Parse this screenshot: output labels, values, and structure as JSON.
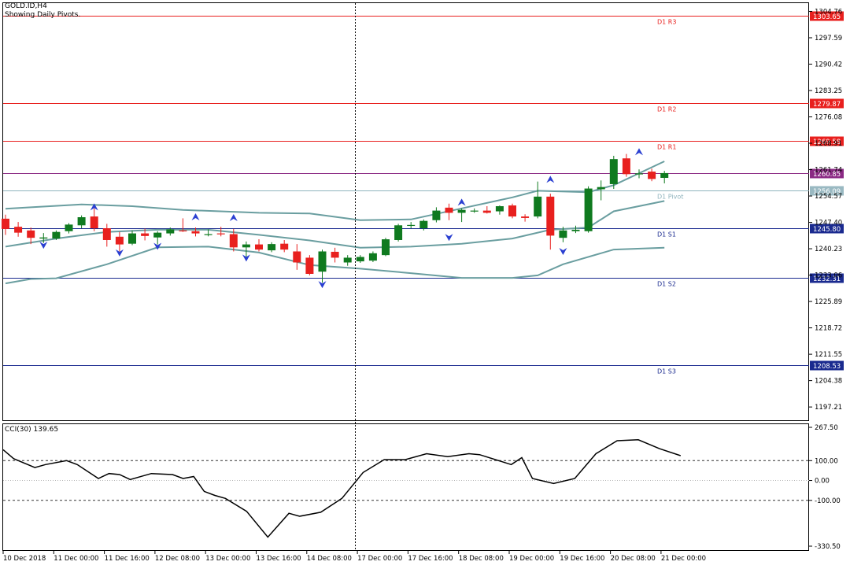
{
  "header": {
    "symbol_timeframe": "GOLD.ID,H4",
    "indicator_caption": "Showing Daily Pivots."
  },
  "price_axis": {
    "ticks": [
      "1304.76",
      "1297.59",
      "1290.42",
      "1283.25",
      "1276.08",
      "1268.91",
      "1261.74",
      "1254.57",
      "1247.40",
      "1240.23",
      "1233.06",
      "1225.89",
      "1218.72",
      "1211.55",
      "1204.38",
      "1197.21"
    ]
  },
  "pivots": [
    {
      "name": "D1 R3",
      "price_label": "1303.65",
      "price": 1303.65,
      "color": "#e8201e",
      "badge": "#e8201e"
    },
    {
      "name": "D1 R2",
      "price_label": "1279.87",
      "price": 1279.87,
      "color": "#e8201e",
      "badge": "#e8201e"
    },
    {
      "name": "D1 R1",
      "price_label": "1269.58",
      "price": 1269.58,
      "color": "#e8201e",
      "badge": "#e8201e"
    },
    {
      "name": "",
      "price_label": "1260.85",
      "price": 1260.85,
      "color": "#8b2a84",
      "badge": "#8b2a84"
    },
    {
      "name": "D1 Pivot",
      "price_label": "1256.09",
      "price": 1256.09,
      "color": "#8fb3bd",
      "badge": "#9ab9c2"
    },
    {
      "name": "D1 S1",
      "price_label": "1245.80",
      "price": 1245.8,
      "color": "#1a2a8f",
      "badge": "#1a2a8f"
    },
    {
      "name": "D1 S2",
      "price_label": "1232.31",
      "price": 1232.31,
      "color": "#1a2a8f",
      "badge": "#1a2a8f"
    },
    {
      "name": "D1 S3",
      "price_label": "1208.53",
      "price": 1208.53,
      "color": "#1a2a8f",
      "badge": "#1a2a8f"
    }
  ],
  "colors": {
    "bull": "#0f7a1f",
    "bear": "#e8201e",
    "band": "#6a9ea0",
    "fractal": "#2a3fd1",
    "cci": "#000000",
    "crosshair": "#000000"
  },
  "chart_data": {
    "type": "candlestick",
    "title": "GOLD.ID,H4",
    "x_labels": [
      "10 Dec 2018",
      "11 Dec 00:00",
      "11 Dec 16:00",
      "12 Dec 08:00",
      "13 Dec 00:00",
      "13 Dec 16:00",
      "14 Dec 08:00",
      "17 Dec 00:00",
      "17 Dec 16:00",
      "18 Dec 08:00",
      "19 Dec 00:00",
      "19 Dec 16:00",
      "20 Dec 08:00",
      "21 Dec 00:00"
    ],
    "ylim": [
      1193.6,
      1307.0
    ],
    "candles": [
      {
        "o": 1248.4,
        "h": 1249.5,
        "l": 1244.0,
        "c": 1245.6
      },
      {
        "o": 1246.2,
        "h": 1247.5,
        "l": 1243.5,
        "c": 1244.6
      },
      {
        "o": 1245.2,
        "h": 1246.0,
        "l": 1241.5,
        "c": 1243.2
      },
      {
        "o": 1243.0,
        "h": 1244.5,
        "l": 1241.8,
        "c": 1243.3
      },
      {
        "o": 1243.0,
        "h": 1245.2,
        "l": 1242.6,
        "c": 1244.8
      },
      {
        "o": 1245.0,
        "h": 1247.2,
        "l": 1244.4,
        "c": 1246.8
      },
      {
        "o": 1246.6,
        "h": 1249.3,
        "l": 1245.8,
        "c": 1248.8
      },
      {
        "o": 1249.0,
        "h": 1251.2,
        "l": 1245.0,
        "c": 1245.8
      },
      {
        "o": 1245.8,
        "h": 1247.0,
        "l": 1240.8,
        "c": 1242.6
      },
      {
        "o": 1243.5,
        "h": 1244.8,
        "l": 1239.5,
        "c": 1241.4
      },
      {
        "o": 1241.6,
        "h": 1245.2,
        "l": 1241.2,
        "c": 1244.4
      },
      {
        "o": 1244.4,
        "h": 1245.7,
        "l": 1242.5,
        "c": 1243.7
      },
      {
        "o": 1243.3,
        "h": 1245.0,
        "l": 1241.4,
        "c": 1244.6
      },
      {
        "o": 1244.4,
        "h": 1246.0,
        "l": 1243.8,
        "c": 1245.5
      },
      {
        "o": 1245.2,
        "h": 1248.5,
        "l": 1244.8,
        "c": 1245.0
      },
      {
        "o": 1245.0,
        "h": 1246.0,
        "l": 1243.6,
        "c": 1244.4
      },
      {
        "o": 1244.2,
        "h": 1245.5,
        "l": 1243.6,
        "c": 1244.2
      },
      {
        "o": 1244.4,
        "h": 1246.2,
        "l": 1243.6,
        "c": 1244.2
      },
      {
        "o": 1244.2,
        "h": 1245.6,
        "l": 1239.5,
        "c": 1240.6
      },
      {
        "o": 1240.6,
        "h": 1242.2,
        "l": 1238.0,
        "c": 1241.4
      },
      {
        "o": 1241.4,
        "h": 1242.8,
        "l": 1239.5,
        "c": 1240.0
      },
      {
        "o": 1239.8,
        "h": 1242.0,
        "l": 1239.3,
        "c": 1241.5
      },
      {
        "o": 1241.6,
        "h": 1242.6,
        "l": 1239.3,
        "c": 1240.0
      },
      {
        "o": 1239.5,
        "h": 1241.5,
        "l": 1234.5,
        "c": 1236.5
      },
      {
        "o": 1237.8,
        "h": 1238.5,
        "l": 1233.0,
        "c": 1233.4
      },
      {
        "o": 1234.0,
        "h": 1240.0,
        "l": 1231.0,
        "c": 1239.5
      },
      {
        "o": 1239.4,
        "h": 1240.5,
        "l": 1236.5,
        "c": 1237.8
      },
      {
        "o": 1236.5,
        "h": 1238.5,
        "l": 1235.6,
        "c": 1237.8
      },
      {
        "o": 1236.8,
        "h": 1238.5,
        "l": 1236.4,
        "c": 1238.0
      },
      {
        "o": 1237.0,
        "h": 1239.5,
        "l": 1236.6,
        "c": 1239.0
      },
      {
        "o": 1238.5,
        "h": 1243.2,
        "l": 1238.2,
        "c": 1242.8
      },
      {
        "o": 1242.6,
        "h": 1247.0,
        "l": 1242.2,
        "c": 1246.6
      },
      {
        "o": 1246.5,
        "h": 1247.5,
        "l": 1245.8,
        "c": 1246.7
      },
      {
        "o": 1245.8,
        "h": 1248.2,
        "l": 1245.2,
        "c": 1247.8
      },
      {
        "o": 1248.0,
        "h": 1251.5,
        "l": 1247.4,
        "c": 1250.6
      },
      {
        "o": 1251.4,
        "h": 1252.5,
        "l": 1248.0,
        "c": 1250.0
      },
      {
        "o": 1250.0,
        "h": 1251.2,
        "l": 1247.5,
        "c": 1250.8
      },
      {
        "o": 1250.6,
        "h": 1251.2,
        "l": 1250.0,
        "c": 1250.6
      },
      {
        "o": 1250.6,
        "h": 1251.8,
        "l": 1249.8,
        "c": 1250.0
      },
      {
        "o": 1250.4,
        "h": 1252.0,
        "l": 1249.5,
        "c": 1251.8
      },
      {
        "o": 1252.0,
        "h": 1252.5,
        "l": 1248.5,
        "c": 1249.0
      },
      {
        "o": 1249.0,
        "h": 1249.6,
        "l": 1247.6,
        "c": 1248.6
      },
      {
        "o": 1249.0,
        "h": 1258.5,
        "l": 1248.5,
        "c": 1254.4
      },
      {
        "o": 1254.4,
        "h": 1255.2,
        "l": 1240.0,
        "c": 1243.8
      },
      {
        "o": 1243.2,
        "h": 1246.2,
        "l": 1242.0,
        "c": 1245.2
      },
      {
        "o": 1245.0,
        "h": 1246.5,
        "l": 1244.5,
        "c": 1245.4
      },
      {
        "o": 1245.0,
        "h": 1257.2,
        "l": 1244.6,
        "c": 1256.6
      },
      {
        "o": 1256.4,
        "h": 1258.8,
        "l": 1253.4,
        "c": 1257.0
      },
      {
        "o": 1257.8,
        "h": 1265.5,
        "l": 1256.5,
        "c": 1264.6
      },
      {
        "o": 1264.8,
        "h": 1266.0,
        "l": 1259.8,
        "c": 1260.5
      },
      {
        "o": 1260.5,
        "h": 1261.8,
        "l": 1259.4,
        "c": 1260.7
      },
      {
        "o": 1261.2,
        "h": 1262.0,
        "l": 1258.6,
        "c": 1259.2
      },
      {
        "o": 1259.5,
        "h": 1261.4,
        "l": 1258.0,
        "c": 1260.8
      }
    ],
    "bands": {
      "upper": [
        [
          0,
          1251.1
        ],
        [
          2,
          1251.5
        ],
        [
          6,
          1252.3
        ],
        [
          10,
          1251.8
        ],
        [
          14,
          1250.8
        ],
        [
          20,
          1250.0
        ],
        [
          24,
          1249.8
        ],
        [
          28,
          1248.0
        ],
        [
          32,
          1248.2
        ],
        [
          36,
          1251.2
        ],
        [
          40,
          1254.2
        ],
        [
          42,
          1256.0
        ],
        [
          46,
          1255.6
        ],
        [
          48,
          1257.5
        ],
        [
          52,
          1264.0
        ]
      ],
      "middle": [
        [
          0,
          1240.8
        ],
        [
          4,
          1243.0
        ],
        [
          8,
          1244.8
        ],
        [
          12,
          1245.4
        ],
        [
          16,
          1245.4
        ],
        [
          20,
          1244.0
        ],
        [
          24,
          1242.5
        ],
        [
          28,
          1240.5
        ],
        [
          32,
          1240.8
        ],
        [
          36,
          1241.6
        ],
        [
          40,
          1243.0
        ],
        [
          43,
          1245.4
        ],
        [
          46,
          1246.0
        ],
        [
          48,
          1250.4
        ],
        [
          52,
          1253.2
        ]
      ],
      "lower": [
        [
          0,
          1230.8
        ],
        [
          2,
          1232.0
        ],
        [
          4,
          1232.2
        ],
        [
          8,
          1236.0
        ],
        [
          12,
          1240.6
        ],
        [
          16,
          1240.8
        ],
        [
          20,
          1239.2
        ],
        [
          24,
          1235.8
        ],
        [
          28,
          1234.8
        ],
        [
          32,
          1233.6
        ],
        [
          36,
          1232.3
        ],
        [
          40,
          1232.3
        ],
        [
          42,
          1233.0
        ],
        [
          44,
          1236.0
        ],
        [
          48,
          1240.0
        ],
        [
          52,
          1240.5
        ]
      ]
    },
    "fractals": [
      {
        "i": 3,
        "type": "down",
        "price": 1241.3
      },
      {
        "i": 7,
        "type": "up",
        "price": 1251.5
      },
      {
        "i": 9,
        "type": "down",
        "price": 1239.2
      },
      {
        "i": 12,
        "type": "down",
        "price": 1241.0
      },
      {
        "i": 15,
        "type": "up",
        "price": 1248.8
      },
      {
        "i": 18,
        "type": "up",
        "price": 1248.6
      },
      {
        "i": 19,
        "type": "down",
        "price": 1237.8
      },
      {
        "i": 25,
        "type": "down",
        "price": 1230.6
      },
      {
        "i": 35,
        "type": "down",
        "price": 1243.4
      },
      {
        "i": 36,
        "type": "up",
        "price": 1252.8
      },
      {
        "i": 43,
        "type": "up",
        "price": 1259.0
      },
      {
        "i": 44,
        "type": "down",
        "price": 1239.6
      },
      {
        "i": 50,
        "type": "up",
        "price": 1266.5
      }
    ],
    "cci": {
      "label": "CCI(30) 139.65",
      "ticks": [
        "267.50",
        "100.00",
        "0.00",
        "-100.00",
        "-330.50"
      ],
      "ylim": [
        -330.5,
        267.5
      ],
      "levels": [
        100,
        0,
        -100
      ],
      "values": [
        [
          0,
          155
        ],
        [
          1,
          110
        ],
        [
          3,
          65
        ],
        [
          4,
          80
        ],
        [
          6,
          100
        ],
        [
          7,
          80
        ],
        [
          9,
          10
        ],
        [
          10,
          35
        ],
        [
          11,
          30
        ],
        [
          12,
          5
        ],
        [
          14,
          35
        ],
        [
          16,
          30
        ],
        [
          17,
          10
        ],
        [
          18,
          20
        ],
        [
          19,
          -55
        ],
        [
          20,
          -75
        ],
        [
          21,
          -90
        ],
        [
          23,
          -155
        ],
        [
          25,
          -285
        ],
        [
          27,
          -165
        ],
        [
          28,
          -180
        ],
        [
          30,
          -160
        ],
        [
          32,
          -90
        ],
        [
          34,
          40
        ],
        [
          36,
          105
        ],
        [
          38,
          105
        ],
        [
          40,
          135
        ],
        [
          42,
          120
        ],
        [
          44,
          135
        ],
        [
          45,
          130
        ],
        [
          48,
          80
        ],
        [
          49,
          115
        ],
        [
          50,
          10
        ],
        [
          52,
          -15
        ],
        [
          54,
          10
        ],
        [
          56,
          135
        ],
        [
          58,
          200
        ],
        [
          60,
          205
        ],
        [
          62,
          160
        ],
        [
          64,
          125
        ]
      ]
    }
  }
}
